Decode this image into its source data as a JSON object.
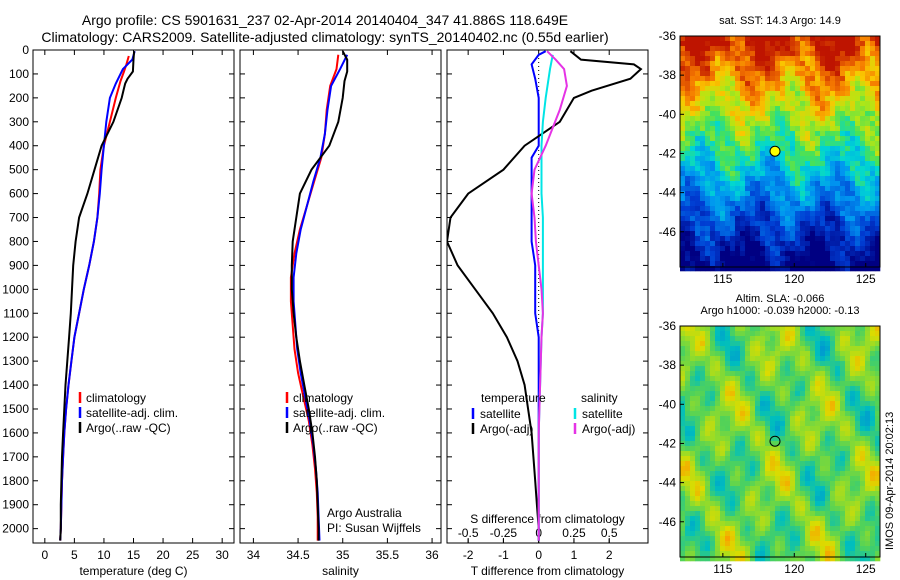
{
  "header": {
    "line1": "Argo profile: CS 5901631_237 02-Apr-2014 20140404_347 41.886S 118.649E",
    "line2": "Climatology: CARS2009. Satellite-adjusted climatology: synTS_20140402.nc (0.55d earlier)"
  },
  "colors": {
    "climatology": "#ff0000",
    "satellite": "#0000ff",
    "argo": "#000000",
    "sal_satellite": "#00e5e5",
    "sal_argo": "#e533e5"
  },
  "chart_data": [
    {
      "type": "line",
      "xlabel": "temperature (deg C)",
      "x_ticks": [
        0,
        5,
        10,
        15,
        20,
        25,
        30
      ],
      "xlim": [
        -2,
        32
      ],
      "y_ticks": [
        0,
        100,
        200,
        300,
        400,
        500,
        600,
        700,
        800,
        900,
        1000,
        1100,
        1200,
        1300,
        1400,
        1500,
        1600,
        1700,
        1800,
        1900,
        2000
      ],
      "ylim": [
        2060,
        0
      ],
      "legend": [
        "climatology",
        "satellite-adj. clim.",
        "Argo(..raw -QC)"
      ],
      "series": [
        {
          "name": "climatology",
          "points": [
            [
              14.2,
              25
            ],
            [
              13.8,
              60
            ],
            [
              13.4,
              90
            ],
            [
              12.8,
              130
            ],
            [
              12.0,
              200
            ],
            [
              11.0,
              300
            ],
            [
              10.0,
              400
            ],
            [
              9.4,
              500
            ],
            [
              9.2,
              600
            ],
            [
              8.9,
              700
            ],
            [
              8.3,
              800
            ],
            [
              7.5,
              900
            ],
            [
              6.6,
              1000
            ],
            [
              5.8,
              1100
            ],
            [
              5.0,
              1200
            ],
            [
              4.5,
              1300
            ],
            [
              4.0,
              1400
            ],
            [
              3.6,
              1500
            ],
            [
              3.3,
              1600
            ],
            [
              3.1,
              1700
            ],
            [
              2.9,
              1800
            ],
            [
              2.8,
              1900
            ],
            [
              2.7,
              2000
            ],
            [
              2.6,
              2050
            ]
          ]
        },
        {
          "name": "satellite-adj. clim.",
          "points": [
            [
              15.2,
              5
            ],
            [
              14.8,
              40
            ],
            [
              13.2,
              80
            ],
            [
              12.0,
              140
            ],
            [
              11.0,
              200
            ],
            [
              10.4,
              300
            ],
            [
              10.0,
              400
            ],
            [
              9.6,
              500
            ],
            [
              9.3,
              600
            ],
            [
              8.9,
              700
            ],
            [
              8.3,
              800
            ],
            [
              7.5,
              900
            ],
            [
              6.6,
              1000
            ],
            [
              5.8,
              1100
            ],
            [
              5.0,
              1200
            ],
            [
              4.5,
              1300
            ],
            [
              4.0,
              1400
            ],
            [
              3.6,
              1500
            ],
            [
              3.3,
              1600
            ],
            [
              3.1,
              1700
            ],
            [
              2.9,
              1800
            ],
            [
              2.8,
              1900
            ],
            [
              2.7,
              2000
            ],
            [
              2.6,
              2050
            ]
          ]
        },
        {
          "name": "Argo(..raw -QC)",
          "points": [
            [
              15.1,
              5
            ],
            [
              15.0,
              40
            ],
            [
              14.9,
              90
            ],
            [
              14.0,
              120
            ],
            [
              13.6,
              140
            ],
            [
              13.4,
              160
            ],
            [
              13.0,
              200
            ],
            [
              11.6,
              300
            ],
            [
              9.6,
              400
            ],
            [
              8.4,
              500
            ],
            [
              7.2,
              600
            ],
            [
              5.8,
              700
            ],
            [
              5.2,
              800
            ],
            [
              4.8,
              900
            ],
            [
              4.6,
              1000
            ],
            [
              4.4,
              1100
            ],
            [
              4.1,
              1200
            ],
            [
              3.8,
              1300
            ],
            [
              3.5,
              1400
            ],
            [
              3.3,
              1500
            ],
            [
              3.1,
              1600
            ],
            [
              2.9,
              1700
            ],
            [
              2.8,
              1800
            ],
            [
              2.7,
              1900
            ],
            [
              2.7,
              2000
            ],
            [
              2.6,
              2050
            ]
          ]
        }
      ]
    },
    {
      "type": "line",
      "xlabel": "salinity",
      "x_ticks": [
        34,
        34.5,
        35,
        35.5,
        36
      ],
      "xlim": [
        33.85,
        36.1
      ],
      "ylim": [
        2060,
        0
      ],
      "legend": [
        "climatology",
        "satellite-adj. clim.",
        "Argo(..raw -QC)"
      ],
      "annotation": [
        "Argo Australia",
        "PI: Susan Wijffels"
      ],
      "series": [
        {
          "name": "climatology",
          "points": [
            [
              34.95,
              20
            ],
            [
              34.93,
              80
            ],
            [
              34.86,
              150
            ],
            [
              34.82,
              250
            ],
            [
              34.8,
              350
            ],
            [
              34.76,
              450
            ],
            [
              34.68,
              550
            ],
            [
              34.6,
              650
            ],
            [
              34.52,
              750
            ],
            [
              34.46,
              850
            ],
            [
              34.42,
              950
            ],
            [
              34.42,
              1050
            ],
            [
              34.44,
              1150
            ],
            [
              34.46,
              1250
            ],
            [
              34.5,
              1350
            ],
            [
              34.56,
              1450
            ],
            [
              34.62,
              1550
            ],
            [
              34.66,
              1650
            ],
            [
              34.69,
              1750
            ],
            [
              34.71,
              1850
            ],
            [
              34.72,
              1950
            ],
            [
              34.72,
              2050
            ]
          ]
        },
        {
          "name": "satellite-adj. clim.",
          "points": [
            [
              35.05,
              20
            ],
            [
              34.97,
              80
            ],
            [
              34.87,
              150
            ],
            [
              34.83,
              250
            ],
            [
              34.8,
              350
            ],
            [
              34.75,
              450
            ],
            [
              34.67,
              550
            ],
            [
              34.6,
              650
            ],
            [
              34.53,
              750
            ],
            [
              34.48,
              850
            ],
            [
              34.45,
              950
            ],
            [
              34.45,
              1050
            ],
            [
              34.47,
              1150
            ],
            [
              34.49,
              1250
            ],
            [
              34.53,
              1350
            ],
            [
              34.58,
              1450
            ],
            [
              34.63,
              1550
            ],
            [
              34.67,
              1650
            ],
            [
              34.7,
              1750
            ],
            [
              34.72,
              1850
            ],
            [
              34.73,
              1950
            ],
            [
              34.74,
              2050
            ]
          ]
        },
        {
          "name": "Argo(..raw -QC)",
          "points": [
            [
              35.0,
              5
            ],
            [
              35.05,
              40
            ],
            [
              35.05,
              90
            ],
            [
              35.02,
              130
            ],
            [
              35.0,
              200
            ],
            [
              34.95,
              300
            ],
            [
              34.85,
              400
            ],
            [
              34.65,
              500
            ],
            [
              34.52,
              600
            ],
            [
              34.48,
              700
            ],
            [
              34.44,
              800
            ],
            [
              34.43,
              900
            ],
            [
              34.43,
              1000
            ],
            [
              34.45,
              1100
            ],
            [
              34.48,
              1200
            ],
            [
              34.52,
              1300
            ],
            [
              34.57,
              1400
            ],
            [
              34.62,
              1500
            ],
            [
              34.66,
              1600
            ],
            [
              34.69,
              1700
            ],
            [
              34.71,
              1800
            ],
            [
              34.72,
              1900
            ],
            [
              34.73,
              2000
            ],
            [
              34.73,
              2050
            ]
          ]
        }
      ]
    },
    {
      "type": "line",
      "xlabel": "T difference from climatology",
      "x_ticks": [
        -2,
        -1,
        0,
        1,
        2
      ],
      "xlim": [
        -2.6,
        3.1
      ],
      "s_label": "S difference from climatology",
      "s_ticks": [
        -0.5,
        -0.25,
        0,
        0.25,
        0.5
      ],
      "s_xlim": [
        -0.65,
        0.775
      ],
      "ylim": [
        2060,
        0
      ],
      "legend_temperature": {
        "title": "temperature",
        "items": [
          "satellite",
          "Argo(-adj)"
        ]
      },
      "legend_salinity": {
        "title": "salinity",
        "items": [
          "satellite",
          "Argo(-adj)"
        ]
      },
      "series": [
        {
          "name": "satellite",
          "group": "temperature",
          "points": [
            [
              0.2,
              5
            ],
            [
              0.0,
              20
            ],
            [
              -0.2,
              60
            ],
            [
              -0.1,
              120
            ],
            [
              0.0,
              200
            ],
            [
              0.0,
              300
            ],
            [
              0.0,
              400
            ],
            [
              -0.2,
              450
            ],
            [
              -0.2,
              600
            ],
            [
              -0.2,
              700
            ],
            [
              -0.2,
              800
            ],
            [
              -0.1,
              900
            ],
            [
              -0.1,
              1000
            ],
            [
              -0.1,
              1100
            ],
            [
              0.0,
              1200
            ],
            [
              0.0,
              1400
            ],
            [
              0.0,
              1600
            ],
            [
              0.0,
              1800
            ],
            [
              0.0,
              2000
            ],
            [
              0.0,
              2050
            ]
          ]
        },
        {
          "name": "Argo(-adj)",
          "group": "temperature",
          "points": [
            [
              0.9,
              5
            ],
            [
              1.2,
              40
            ],
            [
              2.7,
              60
            ],
            [
              2.9,
              80
            ],
            [
              2.6,
              120
            ],
            [
              1.5,
              170
            ],
            [
              1.0,
              200
            ],
            [
              0.6,
              300
            ],
            [
              -0.4,
              400
            ],
            [
              -1.0,
              500
            ],
            [
              -2.0,
              600
            ],
            [
              -2.5,
              700
            ],
            [
              -2.6,
              800
            ],
            [
              -2.3,
              900
            ],
            [
              -1.8,
              1000
            ],
            [
              -1.3,
              1100
            ],
            [
              -0.9,
              1200
            ],
            [
              -0.6,
              1300
            ],
            [
              -0.4,
              1400
            ],
            [
              -0.3,
              1500
            ],
            [
              -0.2,
              1600
            ],
            [
              -0.15,
              1700
            ],
            [
              -0.1,
              1800
            ],
            [
              -0.05,
              1900
            ],
            [
              0.0,
              2000
            ],
            [
              0.0,
              2050
            ]
          ]
        },
        {
          "name": "satellite",
          "group": "salinity",
          "points": [
            [
              0.1,
              20
            ],
            [
              0.08,
              80
            ],
            [
              0.05,
              200
            ],
            [
              0.03,
              300
            ],
            [
              0.02,
              400
            ],
            [
              0.02,
              500
            ],
            [
              0.02,
              600
            ],
            [
              0.03,
              700
            ],
            [
              0.03,
              800
            ],
            [
              0.03,
              900
            ],
            [
              0.03,
              1000
            ],
            [
              0.03,
              1100
            ],
            [
              0.02,
              1200
            ],
            [
              0.01,
              1400
            ],
            [
              0.0,
              1600
            ],
            [
              0.0,
              1800
            ],
            [
              0.0,
              2000
            ],
            [
              0.0,
              2050
            ]
          ]
        },
        {
          "name": "Argo(-adj)",
          "group": "salinity",
          "points": [
            [
              0.06,
              5
            ],
            [
              0.12,
              40
            ],
            [
              0.18,
              80
            ],
            [
              0.2,
              150
            ],
            [
              0.15,
              250
            ],
            [
              0.05,
              400
            ],
            [
              -0.03,
              500
            ],
            [
              -0.05,
              600
            ],
            [
              -0.03,
              700
            ],
            [
              -0.02,
              800
            ],
            [
              0.0,
              900
            ],
            [
              0.02,
              1000
            ],
            [
              0.03,
              1100
            ],
            [
              0.02,
              1200
            ],
            [
              0.01,
              1400
            ],
            [
              0.0,
              1600
            ],
            [
              0.0,
              1800
            ],
            [
              0.0,
              2000
            ],
            [
              0.0,
              2050
            ]
          ]
        }
      ]
    }
  ],
  "maps": [
    {
      "type": "heatmap",
      "title": "sat. SST: 14.3 Argo: 14.9",
      "x_ticks": [
        115,
        120,
        125
      ],
      "xlim": [
        112,
        126
      ],
      "y_ticks": [
        -36,
        -38,
        -40,
        -42,
        -44,
        -46
      ],
      "ylim": [
        -47.8,
        -36
      ],
      "marker": [
        118.65,
        -41.886
      ]
    },
    {
      "type": "heatmap",
      "title_lines": [
        "Altim. SLA: -0.066",
        "Argo h1000: -0.039 h2000: -0.13"
      ],
      "x_ticks": [
        115,
        120,
        125
      ],
      "xlim": [
        112,
        126
      ],
      "y_ticks": [
        -36,
        -38,
        -40,
        -42,
        -44,
        -46
      ],
      "ylim": [
        -47.8,
        -36
      ],
      "marker": [
        118.65,
        -41.886
      ]
    }
  ],
  "footer_credit": "IMOS 09-Apr-2014 20:02:13"
}
